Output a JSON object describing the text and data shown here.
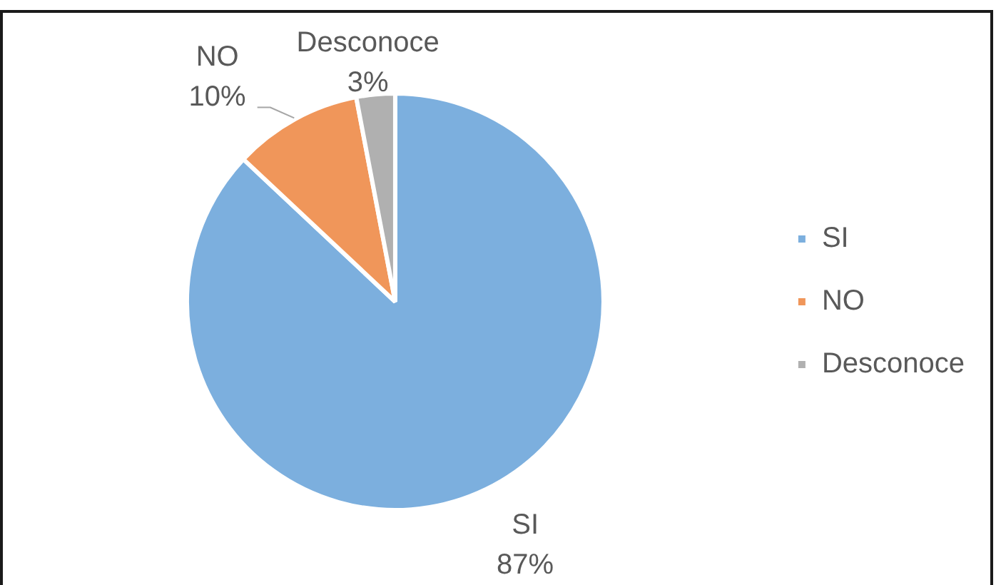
{
  "chart_data": {
    "type": "pie",
    "categories": [
      "SI",
      "NO",
      "Desconoce"
    ],
    "values": [
      87,
      10,
      3
    ],
    "value_labels": [
      "87%",
      "10%",
      "3%"
    ],
    "colors": [
      "#7cafde",
      "#f0965a",
      "#b0b0b0"
    ],
    "legend": "right"
  }
}
